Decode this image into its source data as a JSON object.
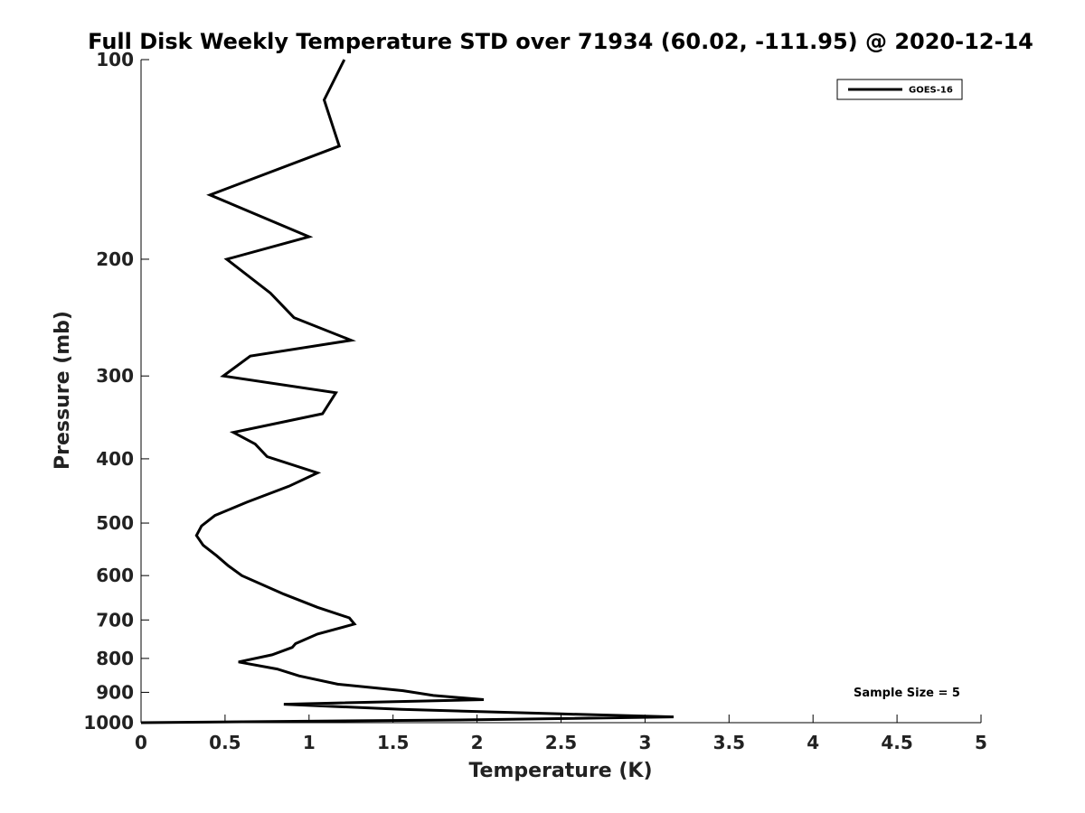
{
  "chart_data": {
    "type": "line",
    "title": "Full Disk Weekly Temperature STD over 71934 (60.02, -111.95) @ 2020-12-14",
    "xlabel": "Temperature (K)",
    "ylabel": "Pressure (mb)",
    "xlim": [
      0,
      5
    ],
    "ylim": [
      100,
      1000
    ],
    "y_scale": "log",
    "y_reversed": true,
    "x_ticks": [
      "0",
      "0.5",
      "1",
      "1.5",
      "2",
      "2.5",
      "3",
      "3.5",
      "4",
      "4.5",
      "5"
    ],
    "y_ticks": [
      "100",
      "200",
      "300",
      "400",
      "500",
      "600",
      "700",
      "800",
      "900",
      "1000"
    ],
    "grid": false,
    "legend": {
      "placement": "top-right",
      "entries": [
        "GOES-16"
      ]
    },
    "annotation": "Sample Size = 5",
    "series": [
      {
        "name": "GOES-16",
        "color": "#000000",
        "x": [
          1.21,
          1.09,
          1.18,
          0.41,
          1.0,
          0.51,
          0.77,
          0.91,
          1.25,
          0.65,
          0.49,
          1.16,
          1.08,
          0.55,
          0.68,
          0.75,
          1.05,
          0.88,
          0.63,
          0.44,
          0.36,
          0.33,
          0.37,
          0.45,
          0.52,
          0.6,
          0.85,
          1.05,
          1.24,
          1.27,
          1.05,
          0.92,
          0.9,
          0.78,
          0.58,
          0.81,
          0.94,
          1.17,
          1.56,
          1.74,
          2.04,
          0.85,
          1.55,
          2.5,
          3.17,
          2.0,
          0.0
        ],
        "y": [
          100,
          115,
          135,
          160,
          185,
          200,
          225,
          245,
          265,
          280,
          300,
          318,
          342,
          365,
          380,
          397,
          420,
          440,
          465,
          487,
          505,
          522,
          540,
          560,
          580,
          600,
          640,
          670,
          695,
          710,
          735,
          760,
          770,
          790,
          810,
          830,
          850,
          875,
          895,
          910,
          923,
          938,
          955,
          970,
          980,
          990,
          1000
        ]
      }
    ]
  }
}
